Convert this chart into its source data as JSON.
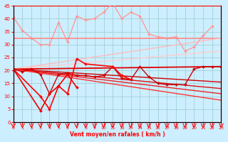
{
  "xlabel": "Vent moyen/en rafales ( km/h )",
  "xlim": [
    0,
    23
  ],
  "ylim": [
    0,
    45
  ],
  "yticks": [
    0,
    5,
    10,
    15,
    20,
    25,
    30,
    35,
    40,
    45
  ],
  "xticks": [
    0,
    1,
    2,
    3,
    4,
    5,
    6,
    7,
    8,
    9,
    10,
    11,
    12,
    13,
    14,
    15,
    16,
    17,
    18,
    19,
    20,
    21,
    22,
    23
  ],
  "bg_color": "#cceeff",
  "grid_color": "#99cccc",
  "series": [
    {
      "x": [
        0,
        1,
        2,
        3,
        4,
        5,
        6,
        7,
        8,
        9,
        10,
        11,
        12,
        13,
        14,
        15,
        16,
        17,
        18,
        19,
        20,
        21,
        22
      ],
      "y": [
        40.5,
        35.5,
        32.5,
        30.0,
        30.0,
        38.5,
        31.0,
        41.0,
        39.5,
        40.0,
        42.5,
        46.0,
        40.0,
        42.5,
        41.0,
        34.0,
        33.0,
        32.5,
        33.0,
        27.5,
        29.0,
        33.5,
        37.0
      ],
      "color": "#ff9999",
      "lw": 1.0,
      "marker": "D",
      "ms": 2.0
    },
    {
      "x": [
        0,
        1,
        2,
        3,
        4,
        5,
        6,
        7,
        8,
        9,
        10,
        11,
        12,
        13,
        14,
        15,
        16,
        17,
        18,
        19,
        20,
        21,
        22,
        23
      ],
      "y": [
        32.5,
        32.5,
        32.5,
        32.5,
        32.5,
        32.5,
        32.5,
        32.5,
        32.5,
        32.5,
        32.5,
        32.5,
        32.5,
        32.5,
        32.5,
        32.5,
        32.5,
        32.5,
        32.5,
        32.5,
        32.5,
        32.5,
        32.5,
        32.5
      ],
      "color": "#ff8888",
      "lw": 1.2,
      "marker": null,
      "ms": 0
    },
    {
      "x": [
        0,
        23
      ],
      "y": [
        20.5,
        32.5
      ],
      "color": "#ffbbbb",
      "lw": 1.0,
      "marker": null,
      "ms": 0
    },
    {
      "x": [
        0,
        23
      ],
      "y": [
        20.5,
        27.5
      ],
      "color": "#ffcccc",
      "lw": 1.0,
      "marker": null,
      "ms": 0
    },
    {
      "x": [
        0,
        23
      ],
      "y": [
        20.5,
        21.5
      ],
      "color": "#dd0000",
      "lw": 1.3,
      "marker": null,
      "ms": 0
    },
    {
      "x": [
        0,
        23
      ],
      "y": [
        20.5,
        15.5
      ],
      "color": "#cc0000",
      "lw": 1.0,
      "marker": null,
      "ms": 0
    },
    {
      "x": [
        0,
        23
      ],
      "y": [
        20.5,
        13.0
      ],
      "color": "#dd1111",
      "lw": 1.0,
      "marker": null,
      "ms": 0
    },
    {
      "x": [
        0,
        23
      ],
      "y": [
        20.5,
        11.0
      ],
      "color": "#ee2222",
      "lw": 1.0,
      "marker": null,
      "ms": 0
    },
    {
      "x": [
        0,
        23
      ],
      "y": [
        20.5,
        8.5
      ],
      "color": "#ff3333",
      "lw": 1.0,
      "marker": null,
      "ms": 0
    },
    {
      "x": [
        0,
        1,
        2,
        3,
        4,
        5,
        6,
        7,
        8,
        9,
        10,
        11,
        12,
        13,
        14,
        15,
        16,
        17,
        18,
        19,
        20,
        21,
        22,
        23
      ],
      "y": [
        20.5,
        19.5,
        20.5,
        18.5,
        11.0,
        18.5,
        19.0,
        18.0,
        18.0,
        17.5,
        18.0,
        21.5,
        17.0,
        16.5,
        21.5,
        17.5,
        15.0,
        14.5,
        14.5,
        14.5,
        20.5,
        21.5,
        21.5,
        21.5
      ],
      "color": "#cc0000",
      "lw": 1.0,
      "marker": "D",
      "ms": 2.0
    },
    {
      "x": [
        0,
        3,
        4,
        5,
        6,
        7,
        8,
        11,
        12,
        13
      ],
      "y": [
        20.5,
        10.0,
        5.0,
        14.0,
        11.0,
        24.5,
        22.5,
        21.5,
        18.0,
        16.5
      ],
      "color": "#ff0000",
      "lw": 1.2,
      "marker": "D",
      "ms": 2.0
    },
    {
      "x": [
        0,
        3,
        4,
        5,
        6,
        7
      ],
      "y": [
        20.5,
        4.5,
        11.0,
        14.0,
        18.5,
        13.5
      ],
      "color": "#ee0000",
      "lw": 1.2,
      "marker": "D",
      "ms": 2.0
    }
  ]
}
